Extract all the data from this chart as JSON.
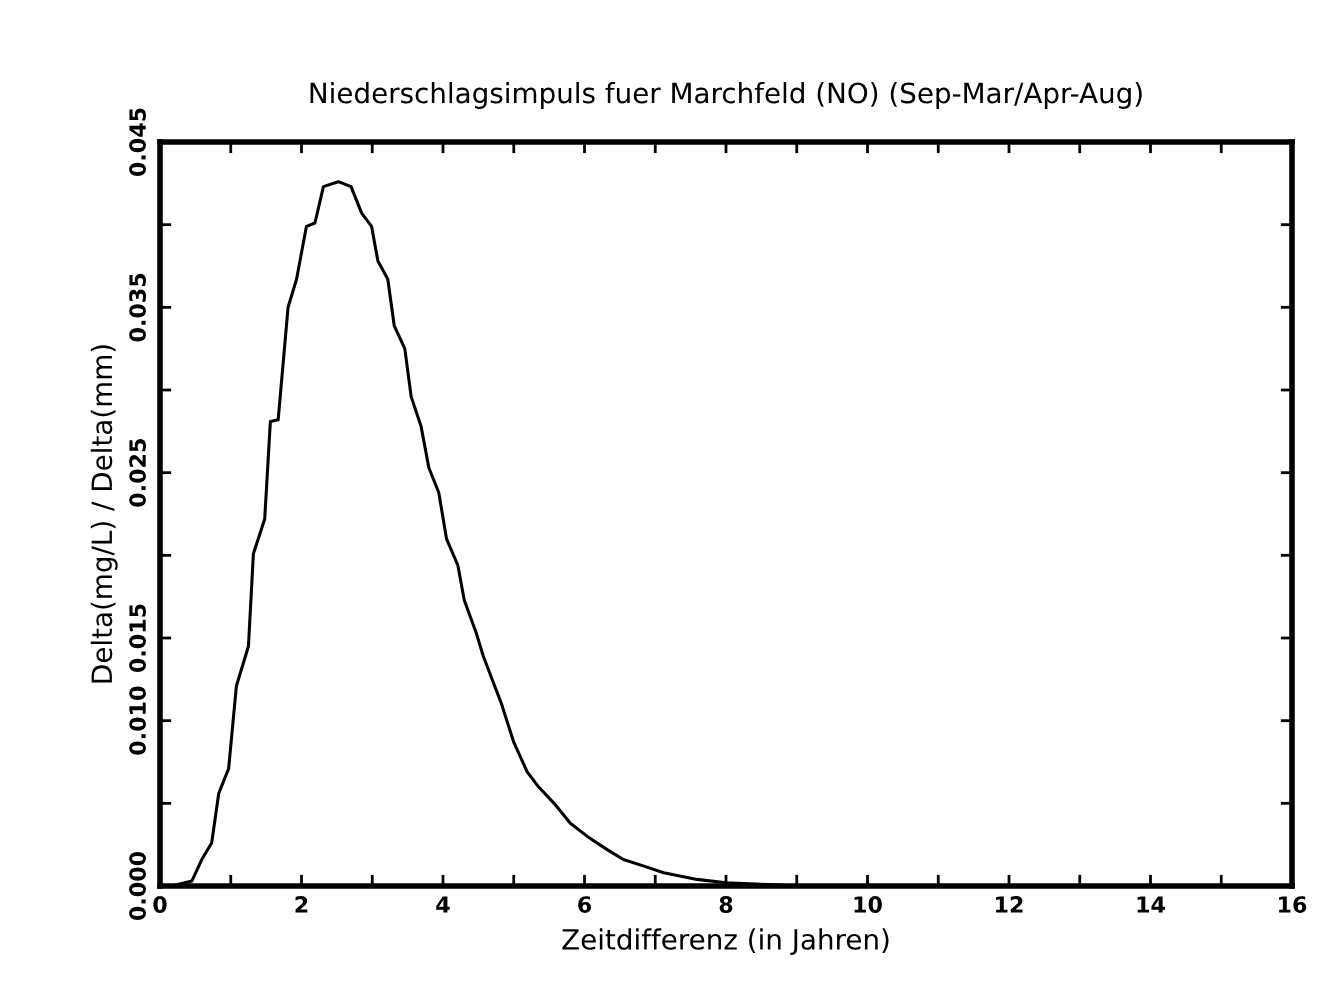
{
  "chart_data": {
    "type": "line",
    "title": "Niederschlagsimpuls fuer Marchfeld (NO) (Sep-Mar/Apr-Aug)",
    "xlabel": "Zeitdifferenz (in Jahren)",
    "ylabel": "Delta(mg/L) / Delta(mm)",
    "x": [
      0.17,
      0.45,
      0.59,
      0.73,
      0.83,
      0.97,
      1.08,
      1.25,
      1.32,
      1.48,
      1.56,
      1.67,
      1.81,
      1.93,
      2.07,
      2.19,
      2.31,
      2.52,
      2.7,
      2.85,
      2.99,
      3.08,
      3.22,
      3.31,
      3.46,
      3.55,
      3.69,
      3.8,
      3.94,
      4.05,
      4.21,
      4.3,
      4.47,
      4.57,
      4.73,
      4.82,
      5.0,
      5.19,
      5.35,
      5.57,
      5.8,
      6.04,
      6.32,
      6.55,
      6.84,
      7.12,
      7.59,
      8.0,
      8.5,
      9.0
    ],
    "series": [
      {
        "color": "#000000",
        "values": [
          0.0,
          0.0003,
          0.0016,
          0.0026,
          0.0056,
          0.0071,
          0.0121,
          0.0145,
          0.0201,
          0.0222,
          0.0281,
          0.0282,
          0.035,
          0.0367,
          0.0399,
          0.0401,
          0.0423,
          0.0426,
          0.0423,
          0.0407,
          0.0399,
          0.0378,
          0.0367,
          0.0339,
          0.0325,
          0.0296,
          0.0278,
          0.0253,
          0.0238,
          0.021,
          0.0194,
          0.0173,
          0.0153,
          0.0139,
          0.0121,
          0.0111,
          0.0087,
          0.0069,
          0.006,
          0.005,
          0.0038,
          0.003,
          0.0022,
          0.0016,
          0.0012,
          0.0008,
          0.0004,
          0.0002,
          0.0001,
          0.0
        ]
      }
    ],
    "xlim": [
      0,
      16
    ],
    "xticks": [
      0,
      {
        "value": 1,
        "label": null
      },
      2,
      {
        "value": 3,
        "label": null
      },
      4,
      {
        "value": 5,
        "label": null
      },
      6,
      {
        "value": 7,
        "label": null
      },
      8,
      {
        "value": 9,
        "label": null
      },
      10,
      {
        "value": 11,
        "label": null
      },
      12,
      {
        "value": 13,
        "label": null
      },
      14,
      {
        "value": 15,
        "label": null
      },
      16
    ],
    "ylim": [
      0,
      0.045
    ],
    "yticks": [
      {
        "value": 0,
        "label": "0.000"
      },
      {
        "value": 0.005,
        "label": null
      },
      {
        "value": 0.01,
        "label": "0.010"
      },
      {
        "value": 0.015,
        "label": "0.015"
      },
      {
        "value": 0.02,
        "label": null
      },
      {
        "value": 0.025,
        "label": "0.025"
      },
      {
        "value": 0.03,
        "label": null
      },
      {
        "value": 0.035,
        "label": "0.035"
      },
      {
        "value": 0.04,
        "label": null
      },
      {
        "value": 0.045,
        "label": "0.045"
      }
    ],
    "grid": false,
    "legend": false,
    "marker": "none",
    "line_style": "solid"
  }
}
